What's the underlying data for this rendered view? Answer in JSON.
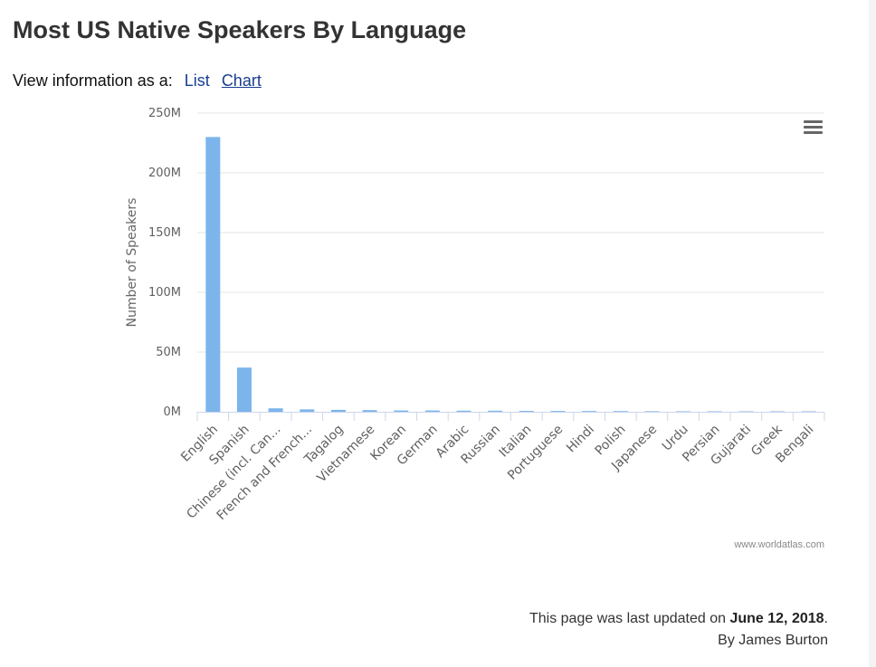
{
  "page": {
    "title": "Most US Native Speakers By Language",
    "view_prefix": "View information as a:",
    "view_list": "List",
    "view_chart": "Chart",
    "footer_prefix": "This page was last updated on ",
    "footer_date": "June 12, 2018",
    "footer_suffix": ".",
    "author": "By James Burton",
    "credit": "www.worldatlas.com",
    "menu_icon": "hamburger-menu-icon"
  },
  "chart_data": {
    "type": "bar",
    "title": "",
    "xlabel": "",
    "ylabel": "Number of Speakers",
    "ylim": [
      0,
      250000000
    ],
    "yticks": [
      "0M",
      "50M",
      "100M",
      "150M",
      "200M",
      "250M"
    ],
    "grid": true,
    "bar_color": "#7cb5ec",
    "categories": [
      "English",
      "Spanish",
      "Chinese (incl. Can...",
      "French and French...",
      "Tagalog",
      "Vietnamese",
      "Korean",
      "German",
      "Arabic",
      "Russian",
      "Italian",
      "Portuguese",
      "Hindi",
      "Polish",
      "Japanese",
      "Urdu",
      "Persian",
      "Gujarati",
      "Greek",
      "Bengali"
    ],
    "values": [
      230000000,
      37000000,
      2900000,
      2000000,
      1600000,
      1400000,
      1100000,
      1100000,
      900000,
      880000,
      720000,
      690000,
      640000,
      580000,
      460000,
      390000,
      390000,
      370000,
      310000,
      250000
    ]
  }
}
